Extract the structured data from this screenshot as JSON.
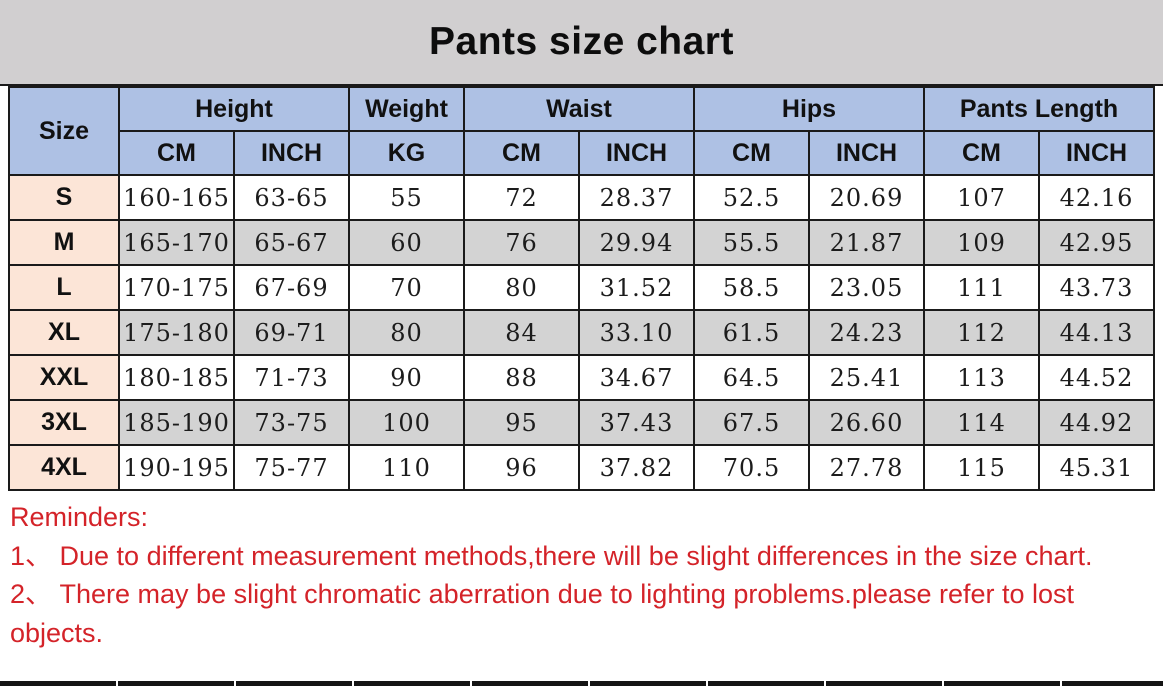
{
  "title": "Pants size chart",
  "table": {
    "corner_header": "Size",
    "groups": [
      {
        "label": "Height"
      },
      {
        "label": "Weight"
      },
      {
        "label": "Waist"
      },
      {
        "label": "Hips"
      },
      {
        "label": "Pants Length"
      }
    ],
    "sub_headers": [
      "CM",
      "INCH",
      "KG",
      "CM",
      "INCH",
      "CM",
      "INCH",
      "CM",
      "INCH"
    ],
    "rows": [
      {
        "size": "S",
        "values": [
          "160-165",
          "63-65",
          "55",
          "72",
          "28.37",
          "52.5",
          "20.69",
          "107",
          "42.16"
        ]
      },
      {
        "size": "M",
        "values": [
          "165-170",
          "65-67",
          "60",
          "76",
          "29.94",
          "55.5",
          "21.87",
          "109",
          "42.95"
        ]
      },
      {
        "size": "L",
        "values": [
          "170-175",
          "67-69",
          "70",
          "80",
          "31.52",
          "58.5",
          "23.05",
          "111",
          "43.73"
        ]
      },
      {
        "size": "XL",
        "values": [
          "175-180",
          "69-71",
          "80",
          "84",
          "33.10",
          "61.5",
          "24.23",
          "112",
          "44.13"
        ]
      },
      {
        "size": "XXL",
        "values": [
          "180-185",
          "71-73",
          "90",
          "88",
          "34.67",
          "64.5",
          "25.41",
          "113",
          "44.52"
        ]
      },
      {
        "size": "3XL",
        "values": [
          "185-190",
          "73-75",
          "100",
          "95",
          "37.43",
          "67.5",
          "26.60",
          "114",
          "44.92"
        ]
      },
      {
        "size": "4XL",
        "values": [
          "190-195",
          "75-77",
          "110",
          "96",
          "37.82",
          "70.5",
          "27.78",
          "115",
          "45.31"
        ]
      }
    ]
  },
  "reminders": {
    "heading": "Reminders:",
    "items": [
      "1、 Due to different measurement methods,there will be slight differences in the size chart.",
      "2、 There may be slight chromatic aberration due to lighting problems.please refer to lost objects."
    ]
  },
  "colors": {
    "title_bar_bg": "#d1cfd0",
    "header_bg": "#aec1e4",
    "size_column_bg": "#fce5d7",
    "alt_row_bg": "#d3d3d3",
    "reminder_text": "#d42329",
    "border": "#1a1a1a"
  },
  "chart_data": {
    "type": "table",
    "title": "Pants size chart",
    "columns": [
      "Size",
      "Height CM",
      "Height INCH",
      "Weight KG",
      "Waist CM",
      "Waist INCH",
      "Hips CM",
      "Hips INCH",
      "Pants Length CM",
      "Pants Length INCH"
    ],
    "rows": [
      [
        "S",
        "160-165",
        "63-65",
        55,
        72,
        28.37,
        52.5,
        20.69,
        107,
        42.16
      ],
      [
        "M",
        "165-170",
        "65-67",
        60,
        76,
        29.94,
        55.5,
        21.87,
        109,
        42.95
      ],
      [
        "L",
        "170-175",
        "67-69",
        70,
        80,
        31.52,
        58.5,
        23.05,
        111,
        43.73
      ],
      [
        "XL",
        "175-180",
        "69-71",
        80,
        84,
        33.1,
        61.5,
        24.23,
        112,
        44.13
      ],
      [
        "XXL",
        "180-185",
        "71-73",
        90,
        88,
        34.67,
        64.5,
        25.41,
        113,
        44.52
      ],
      [
        "3XL",
        "185-190",
        "73-75",
        100,
        95,
        37.43,
        67.5,
        26.6,
        114,
        44.92
      ],
      [
        "4XL",
        "190-195",
        "75-77",
        110,
        96,
        37.82,
        70.5,
        27.78,
        115,
        45.31
      ]
    ]
  }
}
